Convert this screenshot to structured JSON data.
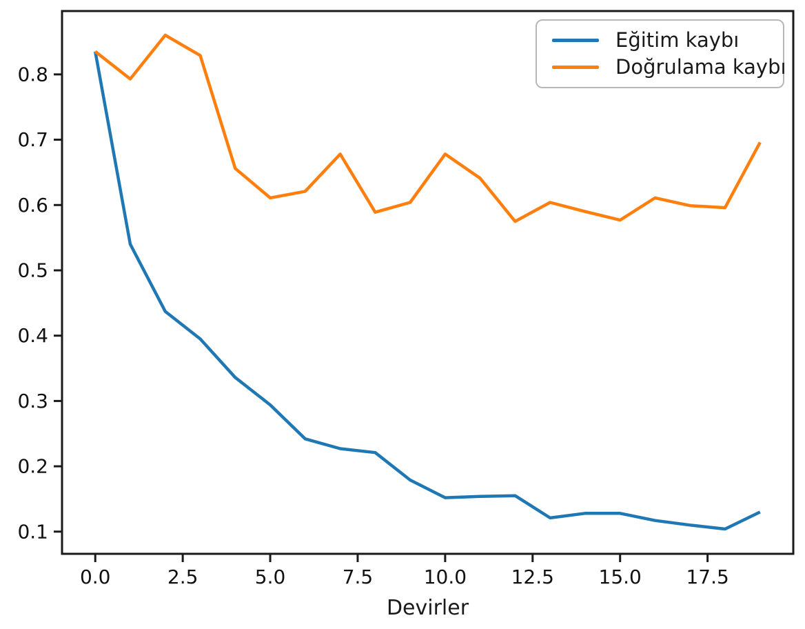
{
  "chart_data": {
    "type": "line",
    "title": "",
    "xlabel": "Devirler",
    "ylabel": "",
    "grid": false,
    "legend_position": "upper right",
    "xlim": [
      -0.95,
      19.95
    ],
    "ylim": [
      0.066,
      0.897
    ],
    "x": [
      0,
      1,
      2,
      3,
      4,
      5,
      6,
      7,
      8,
      9,
      10,
      11,
      12,
      13,
      14,
      15,
      16,
      17,
      18,
      19
    ],
    "xticks": {
      "values": [
        0,
        2.5,
        5,
        7.5,
        10,
        12.5,
        15,
        17.5
      ],
      "labels": [
        "0.0",
        "2.5",
        "5.0",
        "7.5",
        "10.0",
        "12.5",
        "15.0",
        "17.5"
      ]
    },
    "yticks": {
      "values": [
        0.1,
        0.2,
        0.3,
        0.4,
        0.5,
        0.6,
        0.7,
        0.8
      ],
      "labels": [
        "0.1",
        "0.2",
        "0.3",
        "0.4",
        "0.5",
        "0.6",
        "0.7",
        "0.8"
      ]
    },
    "series": [
      {
        "name": "Eğitim kaybı",
        "color": "#1f77b4",
        "values": [
          0.835,
          0.54,
          0.437,
          0.395,
          0.336,
          0.294,
          0.242,
          0.227,
          0.221,
          0.179,
          0.152,
          0.154,
          0.155,
          0.121,
          0.128,
          0.128,
          0.117,
          0.11,
          0.104,
          0.13
        ]
      },
      {
        "name": "Doğrulama kaybı",
        "color": "#ff7f0e",
        "values": [
          0.835,
          0.793,
          0.86,
          0.829,
          0.656,
          0.611,
          0.621,
          0.678,
          0.589,
          0.604,
          0.678,
          0.641,
          0.575,
          0.604,
          0.59,
          0.577,
          0.611,
          0.599,
          0.596,
          0.696
        ]
      }
    ]
  }
}
